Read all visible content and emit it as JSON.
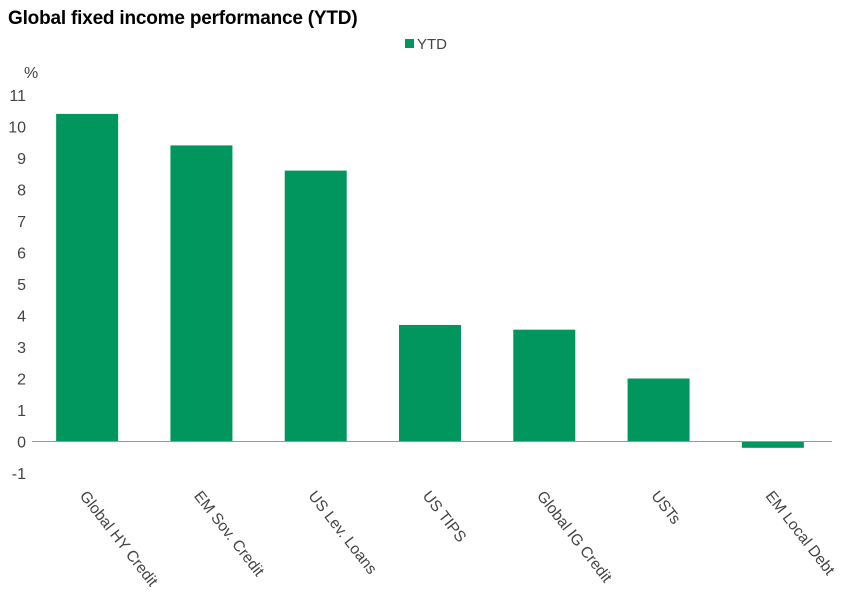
{
  "chart_data": {
    "type": "bar",
    "title": "Global fixed income performance (YTD)",
    "ylabel": "%",
    "xlabel": "",
    "ylim": [
      -1,
      11
    ],
    "yticks": [
      -1,
      0,
      1,
      2,
      3,
      4,
      5,
      6,
      7,
      8,
      9,
      10,
      11
    ],
    "legend": "top-center",
    "grid": false,
    "categories": [
      "Global HY Credit",
      "EM Sov. Credit",
      "US Lev. Loans",
      "US TIPS",
      "Global IG Credit",
      "USTs",
      "EM Local  Debt"
    ],
    "series": [
      {
        "name": "YTD",
        "values": [
          10.4,
          9.4,
          8.6,
          3.7,
          3.55,
          2.0,
          -0.2
        ]
      }
    ]
  },
  "colors": {
    "bar": "#00965e",
    "axis": "#999999"
  }
}
